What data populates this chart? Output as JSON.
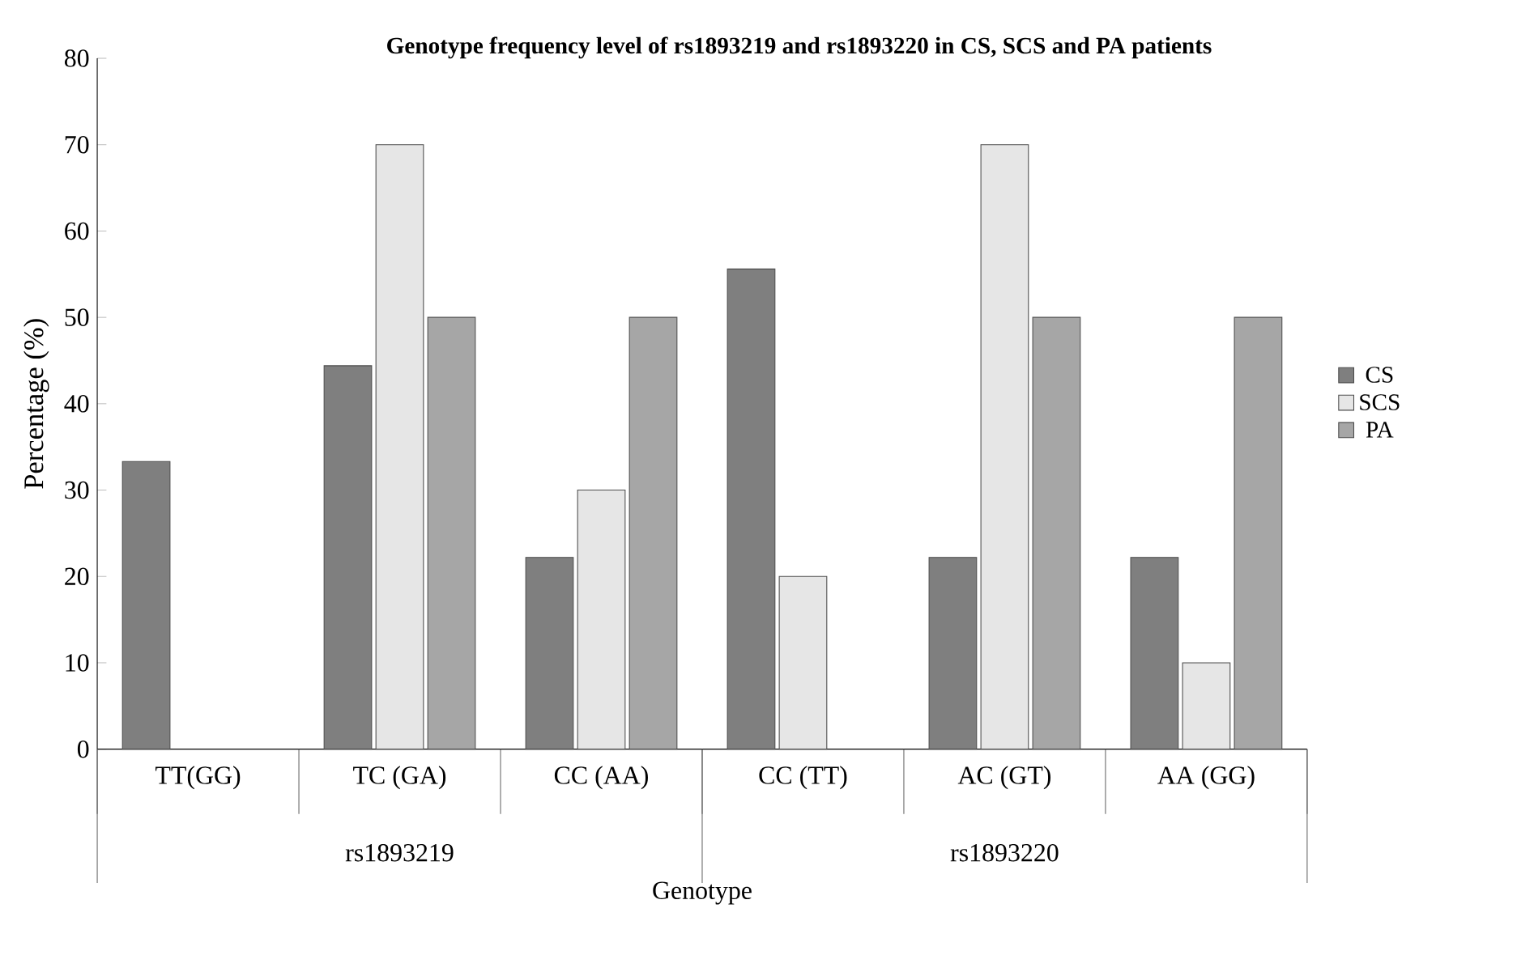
{
  "chart_data": {
    "type": "bar",
    "title": "Genotype frequency level of rs1893219 and rs1893220 in CS, SCS and PA patients",
    "xlabel": "Genotype",
    "ylabel": "Percentage (%)",
    "categories": [
      "TT(GG)",
      "TC (GA)",
      "CC (AA)",
      "CC (TT)",
      "AC (GT)",
      "AA (GG)"
    ],
    "series": [
      {
        "name": "CS",
        "color": "#7f7f7f",
        "values": [
          33.3,
          44.4,
          22.2,
          55.6,
          22.2,
          22.2
        ]
      },
      {
        "name": "SCS",
        "color": "#e6e6e6",
        "values": [
          null,
          70,
          30,
          20,
          70,
          10
        ]
      },
      {
        "name": "PA",
        "color": "#a6a6a6",
        "values": [
          null,
          50,
          50,
          null,
          50,
          50
        ]
      }
    ],
    "annotations": [
      "rs1893219",
      "rs1893220"
    ],
    "ylim": [
      0,
      80
    ],
    "yticks": [
      0,
      10,
      20,
      30,
      40,
      50,
      60,
      70,
      80
    ],
    "grid": false,
    "legend": "right"
  }
}
